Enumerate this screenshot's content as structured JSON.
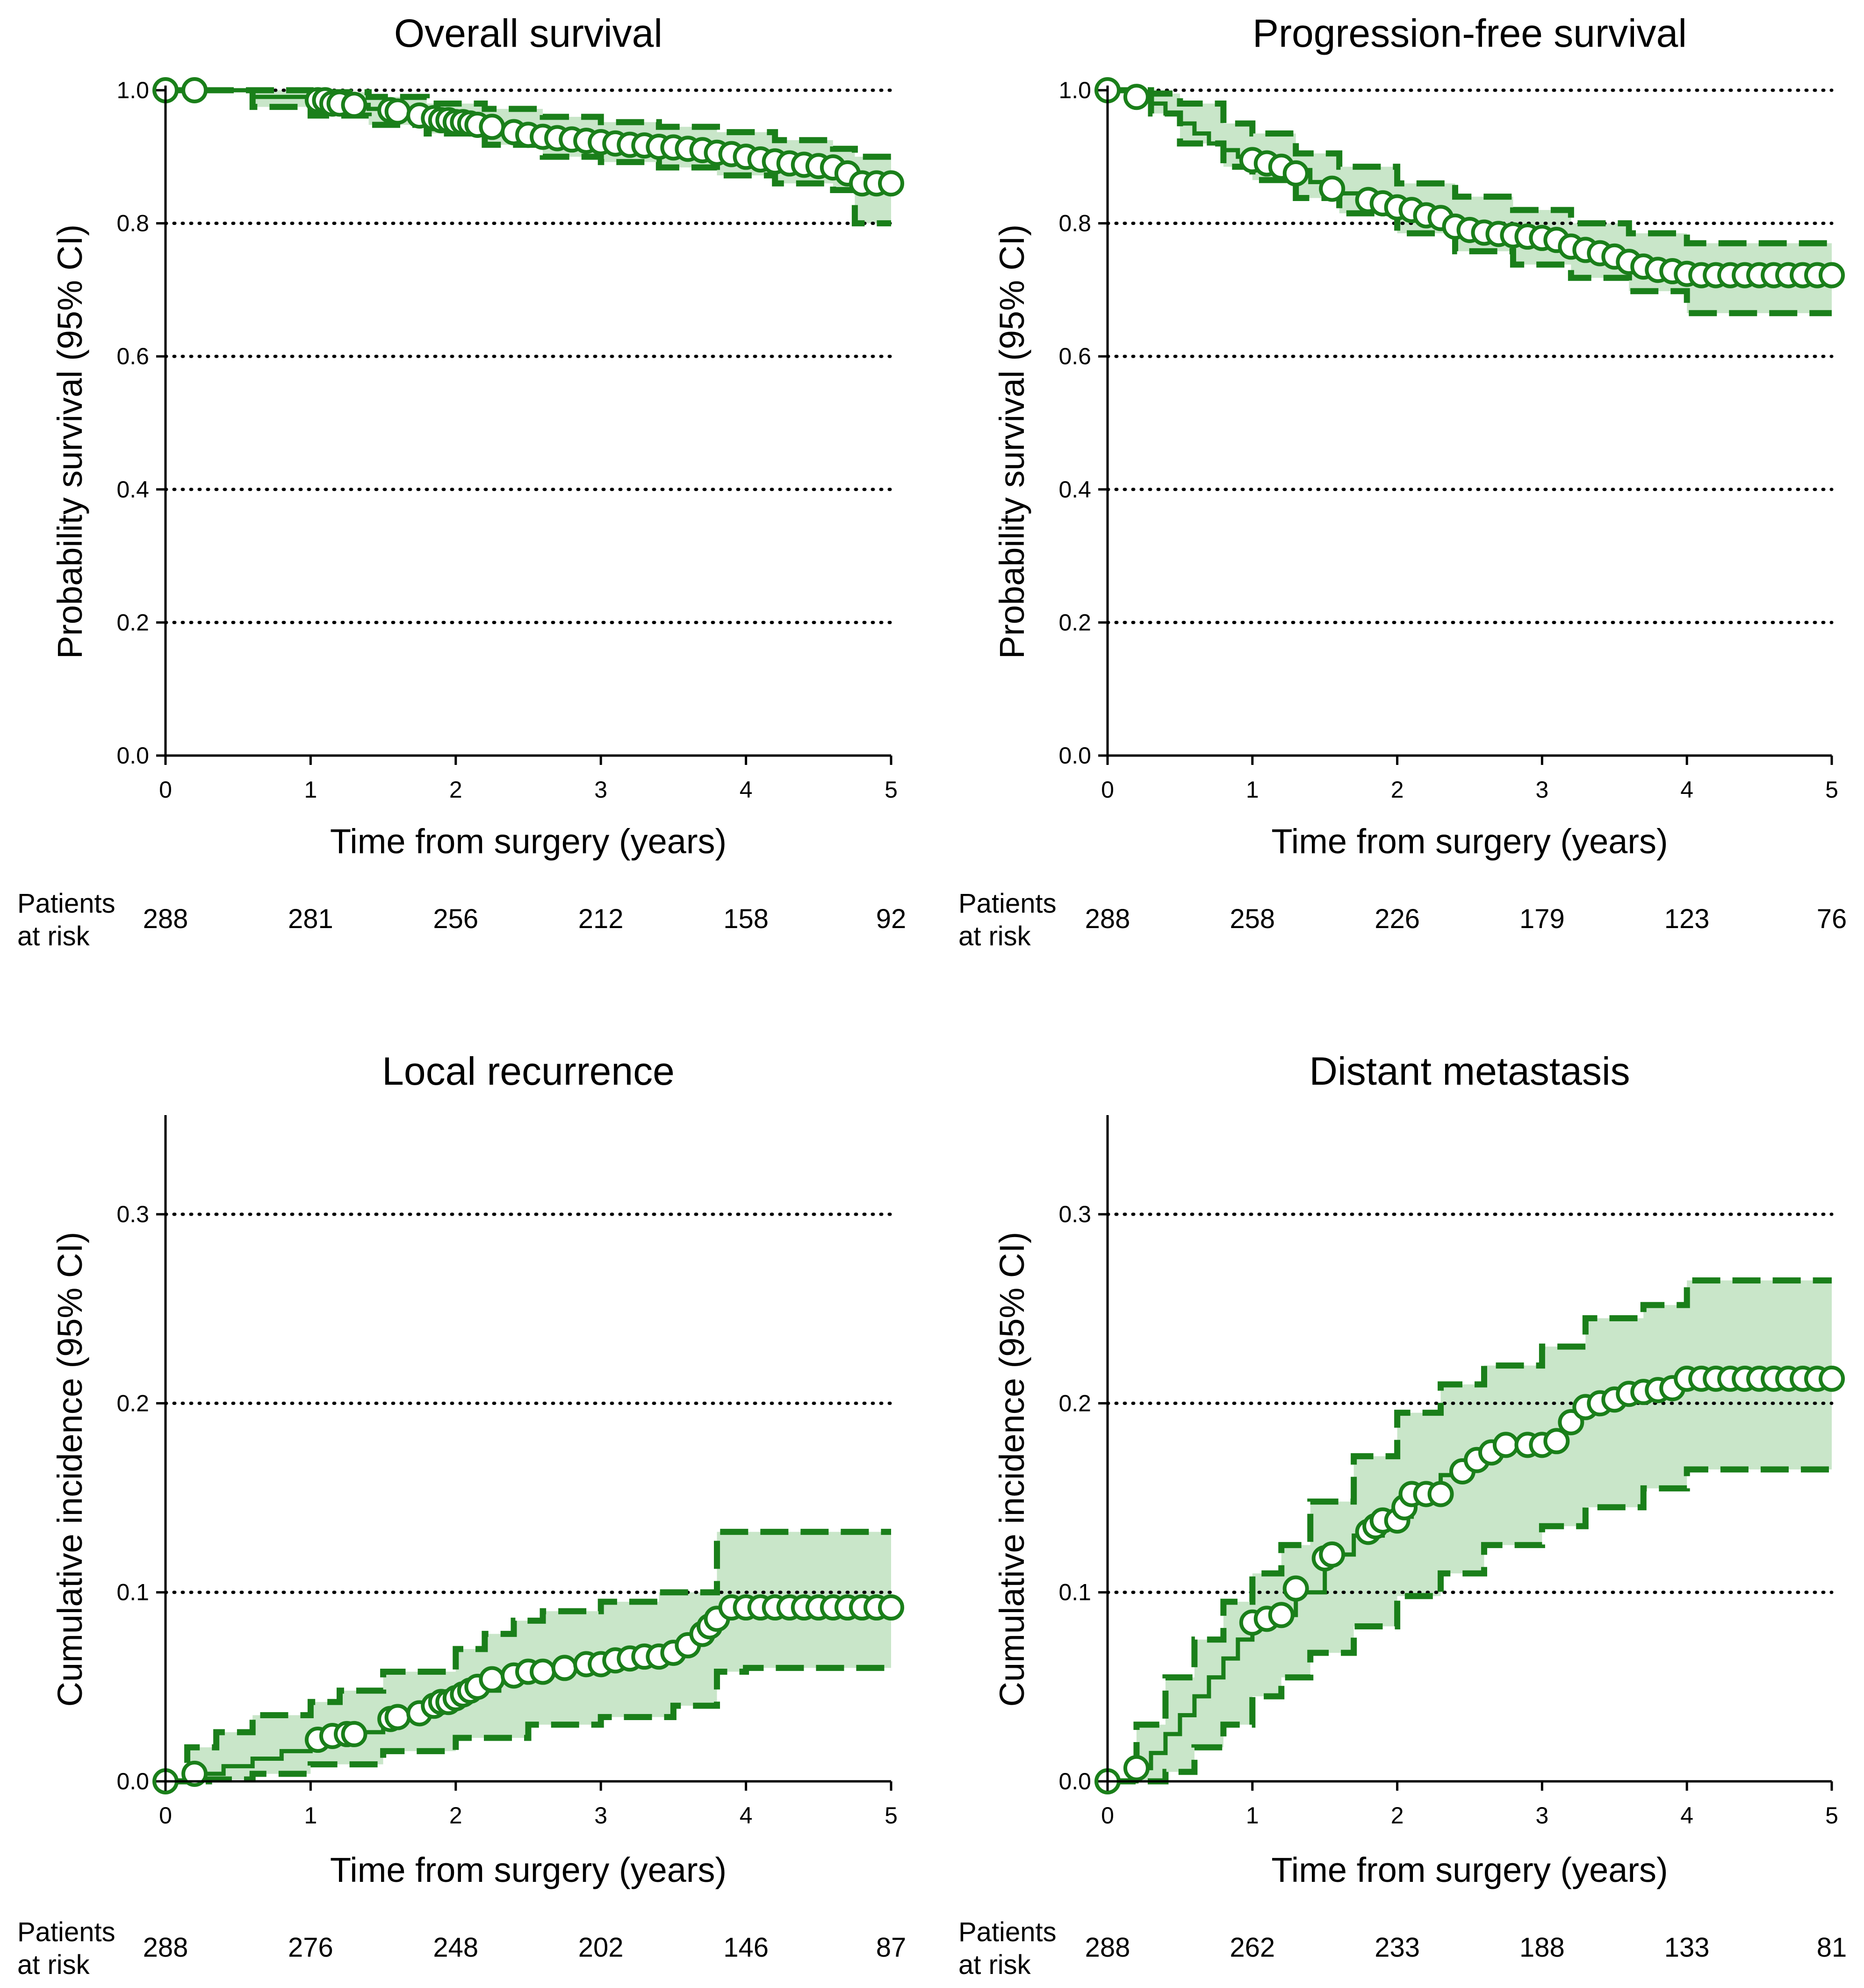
{
  "colors": {
    "curve": "#1a7f1a",
    "band": "#c9e6c9",
    "ci": "#1a7f1a"
  },
  "chart_data": [
    {
      "type": "line",
      "title": "Overall survival",
      "xlabel": "Time from surgery (years)",
      "ylabel": "Probability survival (95% CI)",
      "xlim": [
        0,
        5
      ],
      "ylim": [
        0,
        1.0
      ],
      "xticks": [
        "0",
        "1",
        "2",
        "3",
        "4",
        "5"
      ],
      "yticks": [
        "0.0",
        "0.2",
        "0.4",
        "0.6",
        "0.8",
        "1.0"
      ],
      "grid_y": [
        0.2,
        0.4,
        0.6,
        0.8,
        1.0
      ],
      "estimate": {
        "x": [
          0,
          0.2,
          0.6,
          1.0,
          1.1,
          1.2,
          1.4,
          1.6,
          1.8,
          2.0,
          2.2,
          2.4,
          2.6,
          2.8,
          3.0,
          3.2,
          3.4,
          3.6,
          3.8,
          4.0,
          4.2,
          4.4,
          4.6,
          4.65,
          4.75,
          5.0
        ],
        "y": [
          1.0,
          1.0,
          0.99,
          0.985,
          0.98,
          0.978,
          0.972,
          0.965,
          0.958,
          0.952,
          0.945,
          0.937,
          0.93,
          0.926,
          0.922,
          0.918,
          0.915,
          0.912,
          0.906,
          0.9,
          0.893,
          0.888,
          0.884,
          0.875,
          0.86,
          0.86
        ]
      },
      "ci_upper": {
        "x": [
          0,
          0.6,
          1.0,
          1.4,
          1.8,
          2.2,
          2.6,
          3.0,
          3.4,
          3.8,
          4.2,
          4.6,
          4.75,
          5.0
        ],
        "y": [
          1.0,
          1.0,
          0.997,
          0.99,
          0.98,
          0.972,
          0.96,
          0.952,
          0.945,
          0.937,
          0.925,
          0.912,
          0.9,
          0.9
        ]
      },
      "ci_lower": {
        "x": [
          0,
          0.6,
          1.0,
          1.4,
          1.8,
          2.2,
          2.6,
          3.0,
          3.4,
          3.8,
          4.2,
          4.6,
          4.75,
          5.0
        ],
        "y": [
          1.0,
          0.975,
          0.962,
          0.948,
          0.935,
          0.918,
          0.9,
          0.892,
          0.884,
          0.872,
          0.86,
          0.85,
          0.8,
          0.8
        ]
      },
      "censored": {
        "x": [
          0,
          0.2,
          1.05,
          1.1,
          1.15,
          1.2,
          1.3,
          1.55,
          1.6,
          1.75,
          1.85,
          1.9,
          1.95,
          2.0,
          2.05,
          2.1,
          2.15,
          2.25,
          2.4,
          2.5,
          2.6,
          2.7,
          2.8,
          2.9,
          3.0,
          3.1,
          3.2,
          3.3,
          3.4,
          3.5,
          3.6,
          3.7,
          3.8,
          3.9,
          4.0,
          4.1,
          4.2,
          4.3,
          4.4,
          4.5,
          4.6,
          4.7,
          4.8,
          4.9,
          5.0
        ],
        "y": [
          1.0,
          1.0,
          0.985,
          0.985,
          0.98,
          0.98,
          0.978,
          0.97,
          0.968,
          0.962,
          0.958,
          0.955,
          0.955,
          0.952,
          0.952,
          0.95,
          0.948,
          0.945,
          0.937,
          0.933,
          0.93,
          0.928,
          0.926,
          0.924,
          0.922,
          0.92,
          0.918,
          0.917,
          0.915,
          0.914,
          0.912,
          0.91,
          0.906,
          0.904,
          0.9,
          0.896,
          0.893,
          0.89,
          0.888,
          0.886,
          0.884,
          0.875,
          0.86,
          0.86,
          0.86
        ]
      },
      "risk": {
        "label_lines": [
          "Patients",
          "at risk"
        ],
        "times": [
          0,
          1,
          2,
          3,
          4,
          5
        ],
        "values": [
          "288",
          "281",
          "256",
          "212",
          "158",
          "92"
        ]
      }
    },
    {
      "type": "line",
      "title": "Progression-free survival",
      "xlabel": "Time from surgery (years)",
      "ylabel": "Probability survival (95% CI)",
      "xlim": [
        0,
        5
      ],
      "ylim": [
        0,
        1.0
      ],
      "xticks": [
        "0",
        "1",
        "2",
        "3",
        "4",
        "5"
      ],
      "yticks": [
        "0.0",
        "0.2",
        "0.4",
        "0.6",
        "0.8",
        "1.0"
      ],
      "grid_y": [
        0.2,
        0.4,
        0.6,
        0.8,
        1.0
      ],
      "estimate": {
        "x": [
          0,
          0.2,
          0.3,
          0.4,
          0.5,
          0.6,
          0.7,
          0.8,
          0.9,
          1.0,
          1.2,
          1.4,
          1.6,
          1.8,
          2.0,
          2.2,
          2.4,
          2.6,
          2.8,
          3.0,
          3.2,
          3.4,
          3.6,
          3.8,
          4.0,
          5.0
        ],
        "y": [
          1.0,
          0.99,
          0.98,
          0.965,
          0.95,
          0.935,
          0.92,
          0.91,
          0.9,
          0.895,
          0.88,
          0.862,
          0.845,
          0.833,
          0.822,
          0.81,
          0.797,
          0.786,
          0.78,
          0.775,
          0.765,
          0.752,
          0.742,
          0.732,
          0.722,
          0.722
        ]
      },
      "ci_upper": {
        "x": [
          0,
          0.3,
          0.5,
          0.8,
          1.0,
          1.3,
          1.6,
          2.0,
          2.4,
          2.8,
          3.2,
          3.6,
          4.0,
          5.0
        ],
        "y": [
          1.0,
          0.995,
          0.98,
          0.95,
          0.935,
          0.905,
          0.885,
          0.86,
          0.84,
          0.82,
          0.8,
          0.785,
          0.77,
          0.77
        ]
      },
      "ci_lower": {
        "x": [
          0,
          0.3,
          0.5,
          0.8,
          1.0,
          1.3,
          1.6,
          2.0,
          2.4,
          2.8,
          3.2,
          3.6,
          4.0,
          5.0
        ],
        "y": [
          1.0,
          0.965,
          0.92,
          0.885,
          0.865,
          0.838,
          0.815,
          0.785,
          0.758,
          0.738,
          0.718,
          0.698,
          0.665,
          0.665
        ]
      },
      "censored": {
        "x": [
          0,
          0.2,
          1.0,
          1.1,
          1.2,
          1.3,
          1.55,
          1.8,
          1.9,
          2.0,
          2.1,
          2.2,
          2.3,
          2.4,
          2.5,
          2.6,
          2.7,
          2.8,
          2.9,
          3.0,
          3.1,
          3.2,
          3.3,
          3.4,
          3.5,
          3.6,
          3.7,
          3.8,
          3.9,
          4.0,
          4.1,
          4.2,
          4.3,
          4.4,
          4.5,
          4.6,
          4.7,
          4.8,
          4.9,
          5.0
        ],
        "y": [
          1.0,
          0.99,
          0.895,
          0.89,
          0.885,
          0.875,
          0.852,
          0.835,
          0.83,
          0.824,
          0.82,
          0.812,
          0.808,
          0.795,
          0.79,
          0.786,
          0.784,
          0.782,
          0.78,
          0.778,
          0.775,
          0.765,
          0.76,
          0.755,
          0.75,
          0.742,
          0.735,
          0.73,
          0.728,
          0.724,
          0.722,
          0.722,
          0.722,
          0.722,
          0.722,
          0.722,
          0.722,
          0.722,
          0.722,
          0.722
        ]
      },
      "risk": {
        "label_lines": [
          "Patients",
          "at risk"
        ],
        "times": [
          0,
          1,
          2,
          3,
          4,
          5
        ],
        "values": [
          "288",
          "258",
          "226",
          "179",
          "123",
          "76"
        ]
      }
    },
    {
      "type": "line",
      "title": "Local recurrence",
      "xlabel": "Time from surgery (years)",
      "ylabel": "Cumulative incidence (95% CI)",
      "xlim": [
        0,
        5
      ],
      "ylim": [
        0,
        0.35
      ],
      "xticks": [
        "0",
        "1",
        "2",
        "3",
        "4",
        "5"
      ],
      "yticks": [
        "0.0",
        "0.1",
        "0.2",
        "0.3"
      ],
      "ytick_values": [
        0,
        0.1,
        0.2,
        0.3
      ],
      "grid_y": [
        0.1,
        0.2,
        0.3
      ],
      "estimate": {
        "x": [
          0,
          0.2,
          0.4,
          0.6,
          0.8,
          1.0,
          1.1,
          1.3,
          1.5,
          1.7,
          1.9,
          2.1,
          2.3,
          2.5,
          2.7,
          2.9,
          3.1,
          3.3,
          3.5,
          3.6,
          3.7,
          3.8,
          3.9,
          5.0
        ],
        "y": [
          0.0,
          0.004,
          0.008,
          0.012,
          0.016,
          0.021,
          0.024,
          0.026,
          0.033,
          0.038,
          0.042,
          0.048,
          0.054,
          0.058,
          0.06,
          0.062,
          0.064,
          0.066,
          0.068,
          0.074,
          0.082,
          0.088,
          0.092,
          0.092
        ]
      },
      "ci_upper": {
        "x": [
          0,
          0.15,
          0.35,
          0.6,
          1.0,
          1.2,
          1.5,
          2.0,
          2.2,
          2.4,
          2.6,
          3.0,
          3.4,
          3.6,
          3.8,
          4.0,
          5.0
        ],
        "y": [
          0.0,
          0.018,
          0.026,
          0.035,
          0.042,
          0.048,
          0.058,
          0.07,
          0.078,
          0.085,
          0.09,
          0.095,
          0.1,
          0.1,
          0.132,
          0.132,
          0.132
        ]
      },
      "ci_lower": {
        "x": [
          0,
          0.3,
          0.6,
          1.0,
          1.5,
          2.0,
          2.5,
          3.0,
          3.5,
          3.8,
          4.0,
          5.0
        ],
        "y": [
          0.0,
          0.001,
          0.004,
          0.009,
          0.016,
          0.023,
          0.03,
          0.034,
          0.04,
          0.058,
          0.06,
          0.06
        ]
      },
      "censored": {
        "x": [
          0,
          0.2,
          1.05,
          1.15,
          1.25,
          1.3,
          1.55,
          1.6,
          1.75,
          1.85,
          1.9,
          1.95,
          2.0,
          2.05,
          2.1,
          2.15,
          2.25,
          2.4,
          2.5,
          2.6,
          2.75,
          2.9,
          3.0,
          3.1,
          3.2,
          3.3,
          3.4,
          3.5,
          3.6,
          3.7,
          3.75,
          3.8,
          3.9,
          4.0,
          4.1,
          4.2,
          4.3,
          4.4,
          4.5,
          4.6,
          4.7,
          4.8,
          4.9,
          5.0
        ],
        "y": [
          0.0,
          0.004,
          0.022,
          0.024,
          0.025,
          0.025,
          0.033,
          0.034,
          0.036,
          0.04,
          0.042,
          0.042,
          0.044,
          0.046,
          0.048,
          0.05,
          0.054,
          0.056,
          0.058,
          0.058,
          0.06,
          0.062,
          0.062,
          0.064,
          0.065,
          0.066,
          0.066,
          0.068,
          0.072,
          0.078,
          0.082,
          0.086,
          0.092,
          0.092,
          0.092,
          0.092,
          0.092,
          0.092,
          0.092,
          0.092,
          0.092,
          0.092,
          0.092,
          0.092
        ]
      },
      "risk": {
        "label_lines": [
          "Patients",
          "at risk"
        ],
        "times": [
          0,
          1,
          2,
          3,
          4,
          5
        ],
        "values": [
          "288",
          "276",
          "248",
          "202",
          "146",
          "87"
        ]
      }
    },
    {
      "type": "line",
      "title": "Distant metastasis",
      "xlabel": "Time from surgery (years)",
      "ylabel": "Cumulative incidence (95% CI)",
      "xlim": [
        0,
        5
      ],
      "ylim": [
        0,
        0.35
      ],
      "xticks": [
        "0",
        "1",
        "2",
        "3",
        "4",
        "5"
      ],
      "yticks": [
        "0.0",
        "0.1",
        "0.2",
        "0.3"
      ],
      "ytick_values": [
        0,
        0.1,
        0.2,
        0.3
      ],
      "grid_y": [
        0.1,
        0.2,
        0.3
      ],
      "estimate": {
        "x": [
          0,
          0.2,
          0.3,
          0.4,
          0.5,
          0.6,
          0.7,
          0.8,
          0.9,
          1.0,
          1.2,
          1.3,
          1.5,
          1.7,
          1.9,
          2.1,
          2.3,
          2.5,
          2.7,
          3.0,
          3.1,
          3.2,
          3.4,
          3.6,
          3.8,
          4.0,
          5.0
        ],
        "y": [
          0.0,
          0.007,
          0.015,
          0.025,
          0.035,
          0.045,
          0.055,
          0.065,
          0.075,
          0.084,
          0.088,
          0.1,
          0.12,
          0.13,
          0.14,
          0.152,
          0.162,
          0.17,
          0.178,
          0.18,
          0.185,
          0.195,
          0.2,
          0.205,
          0.208,
          0.213,
          0.213
        ]
      },
      "ci_upper": {
        "x": [
          0,
          0.2,
          0.4,
          0.6,
          0.8,
          1.0,
          1.2,
          1.4,
          1.7,
          2.0,
          2.3,
          2.6,
          3.0,
          3.3,
          3.7,
          4.0,
          5.0
        ],
        "y": [
          0.0,
          0.03,
          0.055,
          0.075,
          0.095,
          0.11,
          0.125,
          0.148,
          0.172,
          0.195,
          0.21,
          0.22,
          0.23,
          0.245,
          0.252,
          0.265,
          0.265
        ]
      },
      "ci_lower": {
        "x": [
          0,
          0.4,
          0.6,
          0.8,
          1.0,
          1.2,
          1.4,
          1.7,
          2.0,
          2.3,
          2.6,
          3.0,
          3.3,
          3.7,
          4.0,
          5.0
        ],
        "y": [
          0.0,
          0.005,
          0.018,
          0.03,
          0.045,
          0.055,
          0.068,
          0.082,
          0.098,
          0.11,
          0.125,
          0.135,
          0.145,
          0.155,
          0.165,
          0.165
        ]
      },
      "censored": {
        "x": [
          0,
          0.2,
          1.0,
          1.1,
          1.2,
          1.3,
          1.5,
          1.55,
          1.8,
          1.85,
          1.9,
          2.0,
          2.05,
          2.1,
          2.2,
          2.3,
          2.45,
          2.55,
          2.65,
          2.75,
          2.9,
          3.0,
          3.1,
          3.2,
          3.3,
          3.4,
          3.5,
          3.6,
          3.7,
          3.8,
          3.9,
          4.0,
          4.1,
          4.2,
          4.3,
          4.4,
          4.5,
          4.6,
          4.7,
          4.8,
          4.9,
          5.0
        ],
        "y": [
          0.0,
          0.007,
          0.084,
          0.086,
          0.088,
          0.102,
          0.118,
          0.12,
          0.132,
          0.135,
          0.138,
          0.138,
          0.145,
          0.152,
          0.152,
          0.152,
          0.164,
          0.17,
          0.174,
          0.178,
          0.178,
          0.178,
          0.18,
          0.19,
          0.198,
          0.2,
          0.202,
          0.205,
          0.206,
          0.207,
          0.208,
          0.213,
          0.213,
          0.213,
          0.213,
          0.213,
          0.213,
          0.213,
          0.213,
          0.213,
          0.213,
          0.213
        ]
      },
      "risk": {
        "label_lines": [
          "Patients",
          "at risk"
        ],
        "times": [
          0,
          1,
          2,
          3,
          4,
          5
        ],
        "values": [
          "288",
          "262",
          "233",
          "188",
          "133",
          "81"
        ]
      }
    }
  ]
}
